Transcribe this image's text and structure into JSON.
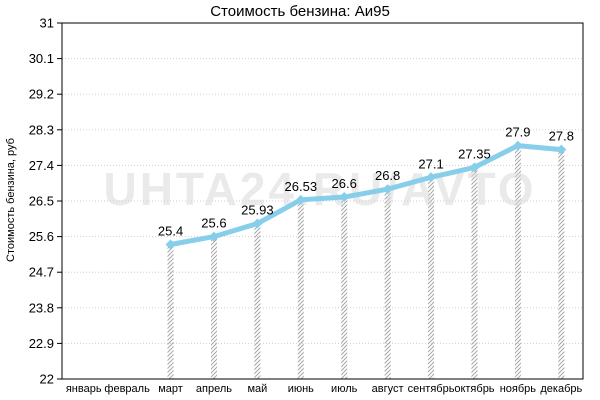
{
  "watermark": "UHTA24.RU/AVTO",
  "chart_data": {
    "type": "line",
    "title": "Стоимость бензина: Аи95",
    "xlabel": "",
    "ylabel": "Стоимость бензина, руб",
    "categories": [
      "январь",
      "февраль",
      "март",
      "апрель",
      "май",
      "июнь",
      "июль",
      "август",
      "сентябрь",
      "октябрь",
      "ноябрь",
      "декабрь"
    ],
    "series": [
      {
        "values": [
          null,
          null,
          25.4,
          25.6,
          25.93,
          26.53,
          26.6,
          26.8,
          27.1,
          27.35,
          27.9,
          27.8
        ],
        "labels": [
          null,
          null,
          "25.4",
          "25.6",
          "25.93",
          "26.53",
          "26.6",
          "26.8",
          "27.1",
          "27.35",
          "27.9",
          "27.8"
        ],
        "color": "#87ceeb"
      }
    ],
    "yticks": [
      "22",
      "22.9",
      "23.8",
      "24.7",
      "25.6",
      "26.5",
      "27.4",
      "28.3",
      "29.2",
      "30.1",
      "31"
    ],
    "ylim": [
      22,
      31
    ],
    "grid": "horizontal dashed",
    "legend": "none",
    "drop_lines": "hatched grey"
  }
}
